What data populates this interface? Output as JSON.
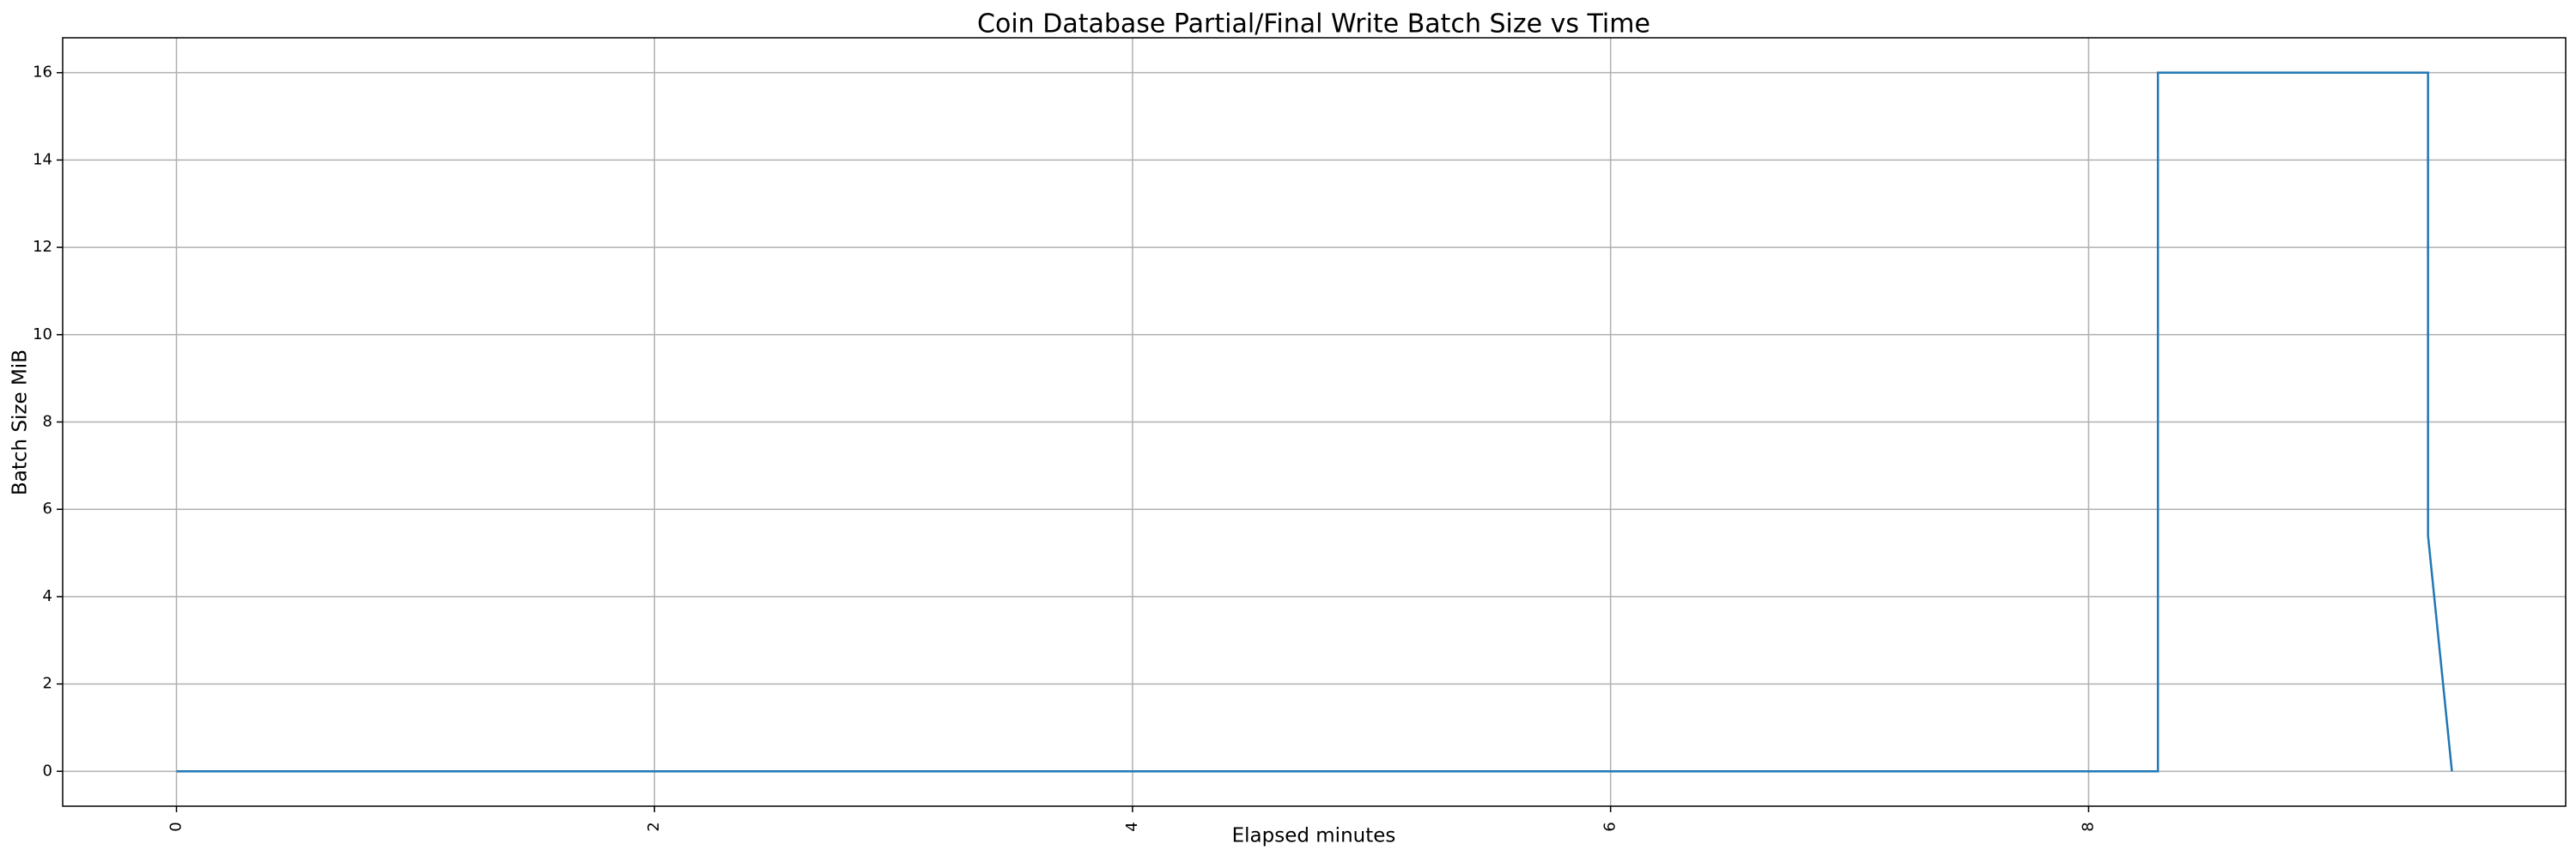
{
  "chart_data": {
    "type": "line",
    "title": "Coin Database Partial/Final Write Batch Size vs Time",
    "x_label": "Elapsed minutes",
    "y_label": "Batch Size MiB",
    "x": [
      0,
      8.29,
      8.29,
      9.42,
      9.42,
      9.52
    ],
    "series": [
      {
        "name": "Batch Size MiB",
        "color": "#1f77b4",
        "values": [
          0,
          0,
          16,
          16,
          5.4,
          0
        ]
      }
    ],
    "xlim": [
      -0.476,
      9.996
    ],
    "ylim": [
      -0.8,
      16.8
    ],
    "xticks": [
      0,
      2,
      4,
      6,
      8
    ],
    "yticks": [
      0,
      2,
      4,
      6,
      8,
      10,
      12,
      14,
      16
    ],
    "grid": true
  }
}
